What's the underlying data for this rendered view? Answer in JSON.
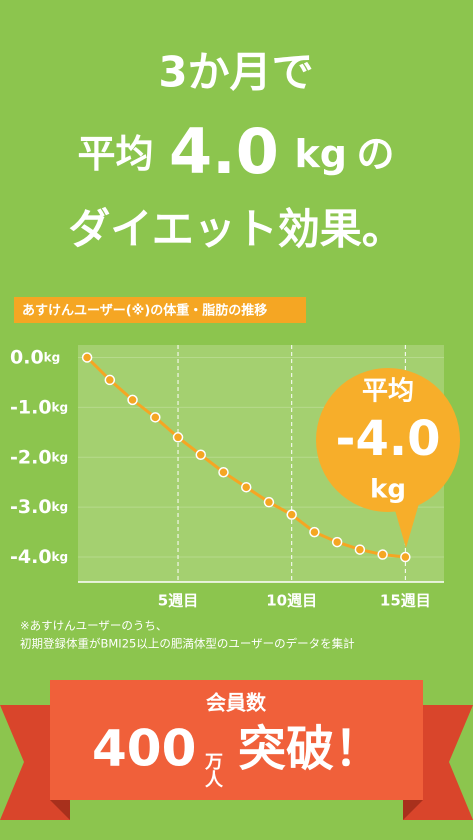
{
  "headline": {
    "line1": "3か月で",
    "line2": [
      "平均",
      "4.0",
      "kg",
      "の"
    ],
    "line3": "ダイエット効果。"
  },
  "chart_label": "あすけんユーザー(※)の体重・脂肪の推移",
  "chart_data": {
    "type": "line",
    "y_unit": "kg",
    "x": [
      1,
      2,
      3,
      4,
      5,
      6,
      7,
      8,
      9,
      10,
      11,
      12,
      13,
      14,
      15
    ],
    "series": [
      {
        "color": "#f5a623",
        "values": [
          0,
          -0.45,
          -0.85,
          -1.2,
          -1.6,
          -1.95,
          -2.3,
          -2.6,
          -2.9,
          -3.15,
          -3.5,
          -3.7,
          -3.85,
          -3.95,
          -4.0
        ]
      }
    ],
    "xlim": [
      0.6,
      16.7
    ],
    "ylim": [
      -4.5,
      0.25
    ],
    "xticks": [
      {
        "value": 5,
        "label": "5週目"
      },
      {
        "value": 10,
        "label": "10週目"
      },
      {
        "value": 15,
        "label": "15週目"
      }
    ],
    "yticks": [
      {
        "value": 0,
        "label": "0.0"
      },
      {
        "value": -1,
        "label": "-1.0"
      },
      {
        "value": -2,
        "label": "-2.0"
      },
      {
        "value": -3,
        "label": "-3.0"
      },
      {
        "value": -4,
        "label": "-4.0"
      }
    ],
    "grid": true
  },
  "callout": {
    "line1": "平均",
    "line2": "-4.0",
    "line3": "kg"
  },
  "footnote": [
    "※あすけんユーザーのうち、",
    "初期登録体重がBMI25以上の肥満体型のユーザーのデータを集計"
  ],
  "banner": {
    "label": "会員数",
    "number": "400",
    "unit": "万人",
    "suffix": "突破！"
  }
}
